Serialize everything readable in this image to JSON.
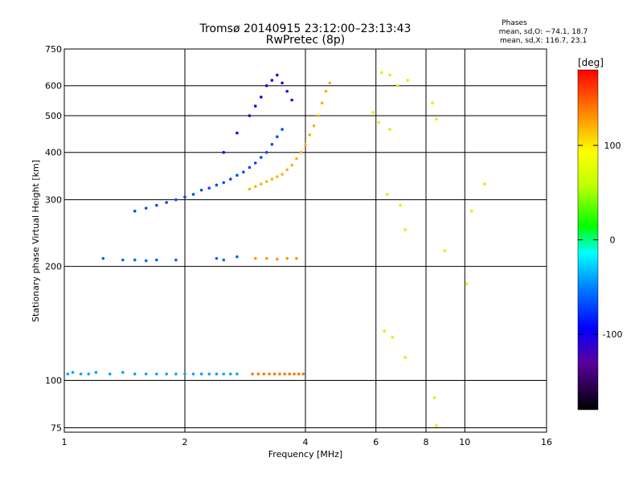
{
  "chart_data": {
    "type": "scatter",
    "title": "Tromsø 20140915 23:12:00–23:13:43",
    "subtitle": "RwPretec (8p)",
    "xlabel": "Frequency [MHz]",
    "ylabel": "Stationary phase Virtual Height [km]",
    "x_scale": "log",
    "y_scale": "log",
    "xlim": [
      1,
      16
    ],
    "ylim": [
      73,
      750
    ],
    "x_ticks": [
      1,
      2,
      4,
      6,
      8,
      10,
      16
    ],
    "y_ticks": [
      75,
      100,
      200,
      300,
      400,
      500,
      600,
      750
    ],
    "grid": true,
    "phases_box": {
      "title": "Phases",
      "line1": "mean, sd,O: −74.1, 18.7",
      "line2": "mean, sd,X: 116.7, 23.1"
    },
    "colorbar": {
      "label": "[deg]",
      "range": [
        -180,
        180
      ],
      "ticks": [
        100,
        0,
        -100
      ]
    },
    "series": [
      {
        "role": "E-layer trace (low band)",
        "phase_deg": -40,
        "points": [
          [
            1.02,
            104
          ],
          [
            1.05,
            105
          ],
          [
            1.1,
            104
          ],
          [
            1.15,
            104
          ],
          [
            1.2,
            105
          ],
          [
            1.3,
            104
          ],
          [
            1.4,
            105
          ],
          [
            1.5,
            104
          ],
          [
            1.6,
            104
          ],
          [
            1.7,
            104
          ],
          [
            1.8,
            104
          ],
          [
            1.9,
            104
          ],
          [
            2.0,
            104
          ],
          [
            2.1,
            104
          ],
          [
            2.2,
            104
          ],
          [
            2.3,
            104
          ],
          [
            2.4,
            104
          ],
          [
            2.5,
            104
          ],
          [
            2.6,
            104
          ],
          [
            2.7,
            104
          ]
        ]
      },
      {
        "role": "E-layer trace (X, upper band)",
        "phase_deg": 140,
        "points": [
          [
            2.95,
            104
          ],
          [
            3.05,
            104
          ],
          [
            3.15,
            104
          ],
          [
            3.25,
            104
          ],
          [
            3.35,
            104
          ],
          [
            3.45,
            104
          ],
          [
            3.55,
            104
          ],
          [
            3.65,
            104
          ],
          [
            3.75,
            104
          ],
          [
            3.85,
            104
          ],
          [
            3.95,
            104
          ]
        ]
      },
      {
        "role": "F-trace O-mode lower branch",
        "phase_deg": -70,
        "points": [
          [
            1.5,
            280
          ],
          [
            1.6,
            285
          ],
          [
            1.7,
            290
          ],
          [
            1.8,
            295
          ],
          [
            1.9,
            300
          ],
          [
            2.0,
            305
          ],
          [
            2.1,
            310
          ],
          [
            2.2,
            318
          ],
          [
            2.3,
            322
          ],
          [
            2.4,
            328
          ],
          [
            2.5,
            333
          ],
          [
            2.6,
            340
          ],
          [
            2.7,
            348
          ],
          [
            2.8,
            355
          ],
          [
            2.9,
            365
          ],
          [
            3.0,
            375
          ],
          [
            3.1,
            388
          ],
          [
            3.2,
            400
          ],
          [
            3.3,
            420
          ],
          [
            3.4,
            440
          ],
          [
            3.5,
            460
          ]
        ]
      },
      {
        "role": "F-trace O-mode upper branch",
        "phase_deg": -105,
        "points": [
          [
            2.5,
            400
          ],
          [
            2.7,
            450
          ],
          [
            2.9,
            500
          ],
          [
            3.0,
            530
          ],
          [
            3.1,
            560
          ],
          [
            3.2,
            600
          ],
          [
            3.3,
            620
          ],
          [
            3.4,
            640
          ],
          [
            3.5,
            610
          ],
          [
            3.6,
            580
          ],
          [
            3.7,
            550
          ]
        ]
      },
      {
        "role": "F-trace X-mode",
        "phase_deg": 120,
        "points": [
          [
            2.9,
            320
          ],
          [
            3.0,
            325
          ],
          [
            3.1,
            330
          ],
          [
            3.2,
            335
          ],
          [
            3.3,
            340
          ],
          [
            3.4,
            345
          ],
          [
            3.5,
            350
          ],
          [
            3.6,
            360
          ],
          [
            3.7,
            370
          ],
          [
            3.8,
            385
          ],
          [
            3.9,
            400
          ],
          [
            4.0,
            420
          ],
          [
            4.1,
            445
          ],
          [
            4.2,
            470
          ],
          [
            4.3,
            500
          ],
          [
            4.4,
            540
          ],
          [
            4.5,
            580
          ],
          [
            4.6,
            610
          ]
        ]
      },
      {
        "role": "sporadic echoes ~210 km",
        "phase_deg": -60,
        "points": [
          [
            1.25,
            210
          ],
          [
            1.4,
            208
          ],
          [
            1.5,
            208
          ],
          [
            1.6,
            207
          ],
          [
            1.7,
            208
          ],
          [
            1.9,
            208
          ],
          [
            2.4,
            210
          ],
          [
            2.5,
            208
          ],
          [
            2.7,
            212
          ]
        ]
      },
      {
        "role": "sporadic echoes ~210 km (X)",
        "phase_deg": 130,
        "points": [
          [
            3.0,
            210
          ],
          [
            3.2,
            210
          ],
          [
            3.4,
            209
          ],
          [
            3.6,
            210
          ],
          [
            3.8,
            210
          ]
        ]
      },
      {
        "role": "scattered noise",
        "phase_deg": 60,
        "points": [
          [
            6.2,
            650
          ],
          [
            6.5,
            640
          ],
          [
            6.8,
            600
          ],
          [
            7.2,
            620
          ],
          [
            5.9,
            510
          ],
          [
            6.1,
            480
          ],
          [
            6.5,
            460
          ],
          [
            8.3,
            540
          ],
          [
            8.5,
            490
          ],
          [
            6.4,
            310
          ],
          [
            6.9,
            290
          ],
          [
            7.1,
            250
          ],
          [
            8.4,
            90
          ],
          [
            8.5,
            76
          ],
          [
            10.1,
            180
          ],
          [
            10.4,
            280
          ],
          [
            6.3,
            135
          ],
          [
            6.6,
            130
          ],
          [
            7.1,
            115
          ],
          [
            8.9,
            220
          ],
          [
            11.2,
            330
          ]
        ]
      }
    ]
  }
}
